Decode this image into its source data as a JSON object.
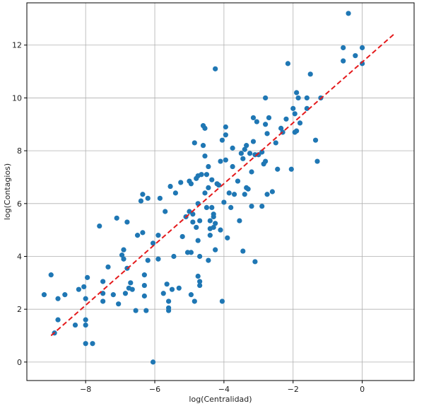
{
  "chart_data": {
    "type": "scatter",
    "title": "",
    "xlabel": "log(Centralidad)",
    "ylabel": "log(Contagios)",
    "xlim": [
      -9.7,
      1.5
    ],
    "ylim": [
      -0.7,
      13.6
    ],
    "xticks": [
      -8,
      -6,
      -4,
      -2,
      0
    ],
    "yticks": [
      0,
      2,
      4,
      6,
      8,
      10,
      12
    ],
    "xtick_labels": [
      "−8",
      "−6",
      "−4",
      "−2",
      "0"
    ],
    "ytick_labels": [
      "0",
      "2",
      "4",
      "6",
      "8",
      "10",
      "12"
    ],
    "grid": true,
    "point_color": "#1f77b4",
    "line_color": "#e41a1c",
    "series": [
      {
        "kind": "points",
        "points": [
          [
            -9.2,
            2.55
          ],
          [
            -9.0,
            3.3
          ],
          [
            -8.9,
            1.1
          ],
          [
            -8.8,
            1.6
          ],
          [
            -8.8,
            2.4
          ],
          [
            -8.6,
            2.55
          ],
          [
            -8.3,
            1.4
          ],
          [
            -8.2,
            2.75
          ],
          [
            -8.05,
            2.85
          ],
          [
            -8.0,
            0.7
          ],
          [
            -8.0,
            1.4
          ],
          [
            -8.0,
            1.6
          ],
          [
            -8.0,
            2.4
          ],
          [
            -7.95,
            3.2
          ],
          [
            -7.8,
            0.7
          ],
          [
            -7.6,
            5.15
          ],
          [
            -7.5,
            2.3
          ],
          [
            -7.5,
            2.6
          ],
          [
            -7.5,
            3.05
          ],
          [
            -7.35,
            3.6
          ],
          [
            -7.2,
            2.55
          ],
          [
            -7.1,
            5.45
          ],
          [
            -7.05,
            2.2
          ],
          [
            -6.95,
            4.05
          ],
          [
            -6.9,
            3.9
          ],
          [
            -6.9,
            4.25
          ],
          [
            -6.85,
            2.6
          ],
          [
            -6.8,
            3.55
          ],
          [
            -6.8,
            5.3
          ],
          [
            -6.75,
            2.8
          ],
          [
            -6.7,
            3.0
          ],
          [
            -6.65,
            2.75
          ],
          [
            -6.55,
            1.95
          ],
          [
            -6.5,
            4.8
          ],
          [
            -6.4,
            6.1
          ],
          [
            -6.35,
            6.35
          ],
          [
            -6.35,
            4.9
          ],
          [
            -6.3,
            3.3
          ],
          [
            -6.3,
            2.9
          ],
          [
            -6.3,
            2.5
          ],
          [
            -6.25,
            1.95
          ],
          [
            -6.2,
            3.85
          ],
          [
            -6.2,
            6.2
          ],
          [
            -6.05,
            4.5
          ],
          [
            -6.05,
            0.0
          ],
          [
            -5.9,
            3.9
          ],
          [
            -5.9,
            4.8
          ],
          [
            -5.85,
            6.2
          ],
          [
            -5.75,
            2.6
          ],
          [
            -5.7,
            5.7
          ],
          [
            -5.65,
            2.95
          ],
          [
            -5.6,
            2.3
          ],
          [
            -5.6,
            2.05
          ],
          [
            -5.6,
            1.95
          ],
          [
            -5.55,
            6.65
          ],
          [
            -5.5,
            2.75
          ],
          [
            -5.45,
            4.0
          ],
          [
            -5.4,
            6.4
          ],
          [
            -5.3,
            2.8
          ],
          [
            -5.25,
            6.8
          ],
          [
            -5.2,
            4.75
          ],
          [
            -5.1,
            5.5
          ],
          [
            -5.05,
            4.15
          ],
          [
            -5.0,
            5.7
          ],
          [
            -5.0,
            6.85
          ],
          [
            -4.95,
            4.15
          ],
          [
            -4.95,
            2.55
          ],
          [
            -4.95,
            6.75
          ],
          [
            -4.9,
            5.3
          ],
          [
            -4.9,
            5.6
          ],
          [
            -4.85,
            2.3
          ],
          [
            -4.85,
            8.3
          ],
          [
            -4.8,
            6.95
          ],
          [
            -4.8,
            5.1
          ],
          [
            -4.75,
            3.25
          ],
          [
            -4.75,
            4.6
          ],
          [
            -4.75,
            6.0
          ],
          [
            -4.75,
            7.05
          ],
          [
            -4.7,
            3.05
          ],
          [
            -4.7,
            2.9
          ],
          [
            -4.7,
            4.0
          ],
          [
            -4.7,
            5.35
          ],
          [
            -4.65,
            7.1
          ],
          [
            -4.6,
            8.95
          ],
          [
            -4.6,
            8.2
          ],
          [
            -4.55,
            8.85
          ],
          [
            -4.55,
            7.8
          ],
          [
            -4.55,
            6.4
          ],
          [
            -4.5,
            7.1
          ],
          [
            -4.5,
            5.85
          ],
          [
            -4.45,
            3.85
          ],
          [
            -4.45,
            6.6
          ],
          [
            -4.45,
            7.4
          ],
          [
            -4.4,
            5.35
          ],
          [
            -4.4,
            4.8
          ],
          [
            -4.4,
            5.05
          ],
          [
            -4.35,
            5.85
          ],
          [
            -4.35,
            6.9
          ],
          [
            -4.3,
            5.1
          ],
          [
            -4.3,
            5.6
          ],
          [
            -4.3,
            5.5
          ],
          [
            -4.25,
            5.25
          ],
          [
            -4.25,
            4.25
          ],
          [
            -4.25,
            11.1
          ],
          [
            -4.2,
            6.75
          ],
          [
            -4.15,
            6.7
          ],
          [
            -4.1,
            5.0
          ],
          [
            -4.1,
            7.6
          ],
          [
            -4.05,
            8.4
          ],
          [
            -4.05,
            2.3
          ],
          [
            -4.0,
            6.05
          ],
          [
            -3.95,
            8.6
          ],
          [
            -3.95,
            8.9
          ],
          [
            -3.95,
            7.65
          ],
          [
            -3.9,
            4.7
          ],
          [
            -3.85,
            6.4
          ],
          [
            -3.8,
            5.85
          ],
          [
            -3.75,
            7.4
          ],
          [
            -3.75,
            8.1
          ],
          [
            -3.7,
            6.35
          ],
          [
            -3.6,
            6.85
          ],
          [
            -3.55,
            5.35
          ],
          [
            -3.5,
            7.9
          ],
          [
            -3.45,
            4.2
          ],
          [
            -3.45,
            7.7
          ],
          [
            -3.4,
            6.35
          ],
          [
            -3.4,
            8.05
          ],
          [
            -3.35,
            6.6
          ],
          [
            -3.35,
            8.2
          ],
          [
            -3.3,
            6.55
          ],
          [
            -3.25,
            7.9
          ],
          [
            -3.2,
            5.9
          ],
          [
            -3.2,
            7.2
          ],
          [
            -3.15,
            8.35
          ],
          [
            -3.15,
            9.25
          ],
          [
            -3.1,
            3.8
          ],
          [
            -3.1,
            7.85
          ],
          [
            -3.05,
            9.1
          ],
          [
            -3.0,
            7.85
          ],
          [
            -2.9,
            5.9
          ],
          [
            -2.9,
            7.95
          ],
          [
            -2.85,
            7.5
          ],
          [
            -2.8,
            10.0
          ],
          [
            -2.8,
            9.0
          ],
          [
            -2.8,
            7.6
          ],
          [
            -2.75,
            6.35
          ],
          [
            -2.75,
            8.65
          ],
          [
            -2.7,
            9.25
          ],
          [
            -2.6,
            6.45
          ],
          [
            -2.5,
            8.3
          ],
          [
            -2.45,
            7.3
          ],
          [
            -2.35,
            8.85
          ],
          [
            -2.3,
            8.7
          ],
          [
            -2.2,
            9.2
          ],
          [
            -2.15,
            11.3
          ],
          [
            -2.05,
            7.3
          ],
          [
            -2.0,
            9.6
          ],
          [
            -1.95,
            8.7
          ],
          [
            -1.95,
            9.4
          ],
          [
            -1.9,
            10.2
          ],
          [
            -1.9,
            8.75
          ],
          [
            -1.85,
            10.0
          ],
          [
            -1.8,
            9.05
          ],
          [
            -1.6,
            10.0
          ],
          [
            -1.6,
            9.6
          ],
          [
            -1.5,
            10.9
          ],
          [
            -1.35,
            8.4
          ],
          [
            -1.3,
            7.6
          ],
          [
            -1.2,
            10.0
          ],
          [
            -0.55,
            11.9
          ],
          [
            -0.55,
            11.4
          ],
          [
            -0.4,
            13.2
          ],
          [
            -0.2,
            11.6
          ],
          [
            0.0,
            11.9
          ],
          [
            0.0,
            11.3
          ]
        ]
      },
      {
        "kind": "fit-line",
        "points": [
          [
            -9.0,
            1.0
          ],
          [
            0.95,
            12.45
          ]
        ]
      }
    ]
  }
}
